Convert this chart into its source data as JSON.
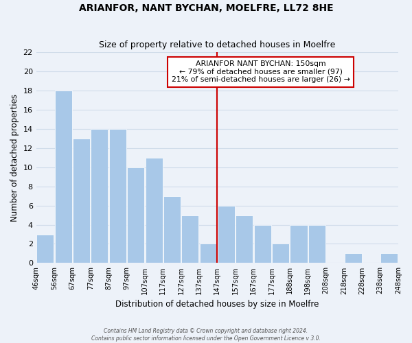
{
  "title": "ARIANFOR, NANT BYCHAN, MOELFRE, LL72 8HE",
  "subtitle": "Size of property relative to detached houses in Moelfre",
  "xlabel": "Distribution of detached houses by size in Moelfre",
  "ylabel": "Number of detached properties",
  "bar_color": "#a8c8e8",
  "bar_edge_color": "#ffffff",
  "grid_color": "#d0dcea",
  "background_color": "#edf2f9",
  "bins": [
    "46sqm",
    "56sqm",
    "67sqm",
    "77sqm",
    "87sqm",
    "97sqm",
    "107sqm",
    "117sqm",
    "127sqm",
    "137sqm",
    "147sqm",
    "157sqm",
    "167sqm",
    "177sqm",
    "188sqm",
    "198sqm",
    "208sqm",
    "218sqm",
    "228sqm",
    "238sqm",
    "248sqm"
  ],
  "values": [
    3,
    18,
    13,
    14,
    14,
    10,
    11,
    7,
    5,
    2,
    6,
    5,
    4,
    2,
    4,
    4,
    0,
    1,
    0,
    1
  ],
  "ylim": [
    0,
    22
  ],
  "yticks": [
    0,
    2,
    4,
    6,
    8,
    10,
    12,
    14,
    16,
    18,
    20,
    22
  ],
  "marker_bin_index": 10,
  "marker_color": "#cc0000",
  "annotation_title": "ARIANFOR NANT BYCHAN: 150sqm",
  "annotation_line1": "← 79% of detached houses are smaller (97)",
  "annotation_line2": "21% of semi-detached houses are larger (26) →",
  "annotation_box_color": "#ffffff",
  "annotation_box_edge_color": "#cc0000",
  "footer_line1": "Contains HM Land Registry data © Crown copyright and database right 2024.",
  "footer_line2": "Contains public sector information licensed under the Open Government Licence v 3.0."
}
